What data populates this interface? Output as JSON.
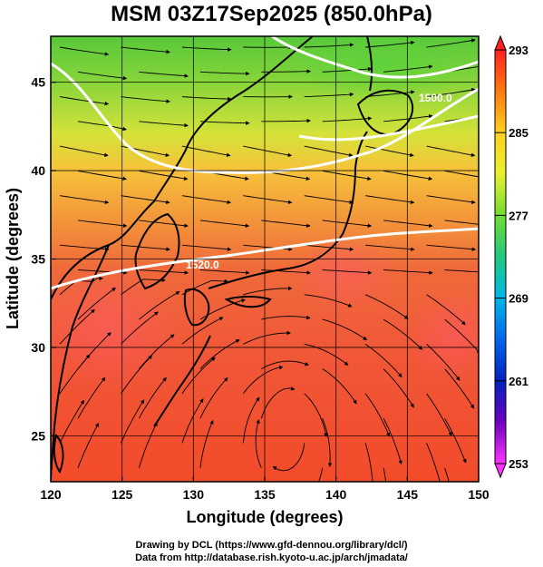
{
  "chart_data": {
    "type": "heatmap",
    "title": "MSM 03Z17Sep2025 (850.0hPa)",
    "xlabel": "Longitude (degrees)",
    "ylabel": "Latitude  (degrees)",
    "xlim": [
      120,
      150
    ],
    "ylim": [
      22.4,
      47.6
    ],
    "xticks": [
      120,
      125,
      130,
      135,
      140,
      145,
      150
    ],
    "yticks": [
      25,
      30,
      35,
      40,
      45
    ],
    "grid": true,
    "colorbar": {
      "min": 253,
      "max": 293,
      "labels": [
        293,
        285,
        277,
        269,
        261,
        253
      ],
      "colors": [
        "#ff2020",
        "#ff7a10",
        "#ffd020",
        "#e8f030",
        "#70dd30",
        "#20c880",
        "#00b8e8",
        "#0066ee",
        "#0020c0",
        "#7000c0",
        "#ff33ff"
      ]
    },
    "contours": [
      {
        "value": "1500.0",
        "kind": "geopotential height"
      },
      {
        "value": "1520.0",
        "kind": "geopotential height"
      }
    ],
    "overlay": "wind streamlines",
    "credits": [
      "Drawing by DCL (https://www.gfd-dennou.org/library/dcl/)",
      "Data from http://database.rish.kyoto-u.ac.jp/arch/jmadata/"
    ]
  }
}
